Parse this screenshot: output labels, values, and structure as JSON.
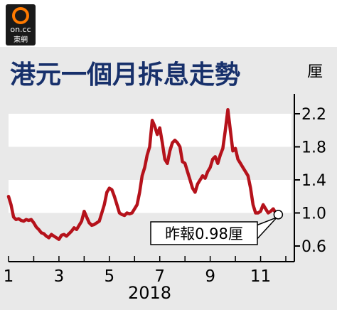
{
  "brand": {
    "logo_text": "on.cc",
    "logo_caption": "東網",
    "logo_icon": "on-cc-logo-icon"
  },
  "chart_data": {
    "type": "line",
    "title": "港元一個月拆息走勢",
    "unit_label": "厘",
    "xlabel": "2018",
    "x_ticks": [
      "1",
      "3",
      "5",
      "7",
      "9",
      "11"
    ],
    "y_ticks": [
      "2.2",
      "1.8",
      "1.4",
      "1.0",
      "0.6"
    ],
    "ylim": [
      0.6,
      2.2
    ],
    "grid": "alternating horizontal bands",
    "series": [
      {
        "color": "#b5121b",
        "x": [
          1.0,
          1.1,
          1.2,
          1.3,
          1.4,
          1.5,
          1.6,
          1.7,
          1.8,
          1.9,
          2.0,
          2.1,
          2.2,
          2.3,
          2.4,
          2.5,
          2.6,
          2.7,
          2.8,
          2.9,
          3.0,
          3.1,
          3.2,
          3.3,
          3.4,
          3.5,
          3.6,
          3.7,
          3.8,
          3.9,
          4.0,
          4.1,
          4.2,
          4.3,
          4.4,
          4.5,
          4.6,
          4.7,
          4.8,
          4.9,
          5.0,
          5.1,
          5.2,
          5.3,
          5.4,
          5.5,
          5.6,
          5.7,
          5.8,
          5.9,
          6.0,
          6.1,
          6.2,
          6.3,
          6.4,
          6.5,
          6.6,
          6.7,
          6.8,
          6.9,
          7.0,
          7.1,
          7.2,
          7.3,
          7.4,
          7.5,
          7.6,
          7.7,
          7.8,
          7.9,
          8.0,
          8.1,
          8.2,
          8.3,
          8.4,
          8.5,
          8.6,
          8.7,
          8.8,
          8.9,
          9.0,
          9.1,
          9.2,
          9.3,
          9.4,
          9.5,
          9.6,
          9.7,
          9.8,
          9.9,
          10.0,
          10.1,
          10.2,
          10.3,
          10.4,
          10.5,
          10.6,
          10.7,
          10.8,
          10.9,
          11.0,
          11.1,
          11.2,
          11.3,
          11.4,
          11.5,
          11.6,
          11.7
        ],
        "y": [
          1.2,
          1.1,
          0.95,
          0.92,
          0.93,
          0.91,
          0.9,
          0.92,
          0.91,
          0.92,
          0.88,
          0.83,
          0.8,
          0.76,
          0.75,
          0.72,
          0.7,
          0.74,
          0.72,
          0.7,
          0.68,
          0.73,
          0.74,
          0.72,
          0.75,
          0.78,
          0.82,
          0.8,
          0.85,
          0.9,
          1.02,
          0.95,
          0.88,
          0.85,
          0.86,
          0.88,
          0.9,
          1.0,
          1.1,
          1.25,
          1.3,
          1.28,
          1.2,
          1.1,
          1.0,
          0.98,
          0.97,
          1.0,
          0.99,
          1.0,
          1.05,
          1.1,
          1.25,
          1.45,
          1.55,
          1.7,
          1.8,
          2.12,
          2.05,
          1.95,
          2.03,
          1.85,
          1.65,
          1.6,
          1.75,
          1.85,
          1.88,
          1.85,
          1.8,
          1.62,
          1.6,
          1.5,
          1.4,
          1.3,
          1.25,
          1.35,
          1.4,
          1.45,
          1.42,
          1.5,
          1.55,
          1.65,
          1.68,
          1.6,
          1.7,
          1.78,
          2.0,
          2.25,
          2.0,
          1.75,
          1.78,
          1.65,
          1.6,
          1.55,
          1.5,
          1.45,
          1.3,
          1.1,
          1.0,
          1.0,
          1.02,
          1.1,
          1.05,
          1.0,
          1.02,
          1.05,
          1.0,
          0.98
        ]
      }
    ],
    "annotations": [
      {
        "text": "昨報0.98厘",
        "x": 11.7,
        "y": 0.98
      }
    ]
  }
}
